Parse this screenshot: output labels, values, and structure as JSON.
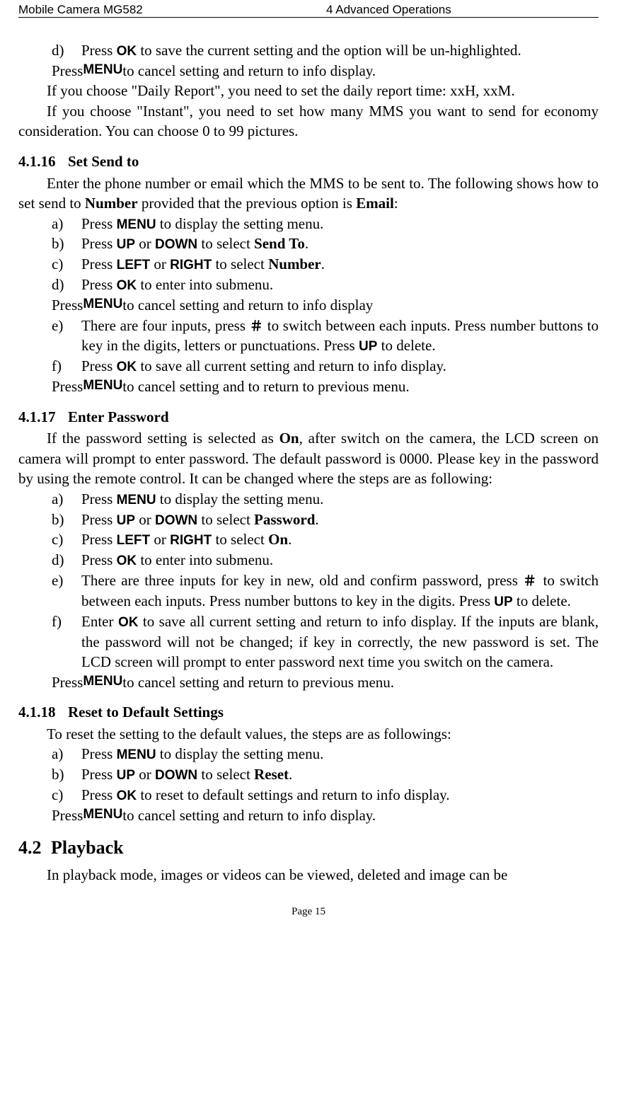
{
  "header": {
    "left": "Mobile Camera MG582",
    "mid": "4 Advanced Operations"
  },
  "footer": "Page 15",
  "buttons": {
    "OK": "OK",
    "MENU": "MENU",
    "UP": "UP",
    "DOWN": "DOWN",
    "LEFT": "LEFT",
    "RIGHT": "RIGHT",
    "HASH": "＃"
  },
  "s0": {
    "d_1": "Press ",
    "d_2": " to save the current setting and the option will be un-highlighted.",
    "d_sub_1": "Press ",
    "d_sub_2": " to cancel setting and return to info display.",
    "p1": "If you choose \"Daily Report\", you need to set the daily report time: xxH, xxM.",
    "p2": "If you choose \"Instant\", you need to set how many MMS you want to send for economy consideration. You can choose 0 to 99 pictures."
  },
  "s16": {
    "num": "4.1.16",
    "title": "Set Send to",
    "intro_1": "Enter the phone number or email which the MMS to be sent to. The following shows how to set send to ",
    "intro_b1": "Number",
    "intro_2": " provided that the previous option is ",
    "intro_b2": "Email",
    "intro_3": ":",
    "a_1": "Press ",
    "a_2": " to display the setting menu.",
    "b_1": "Press ",
    "b_2": " or ",
    "b_3": " to select ",
    "b_b": "Send To",
    "b_4": ".",
    "c_1": "Press ",
    "c_2": " or ",
    "c_3": " to select ",
    "c_b": "Number",
    "c_4": ".",
    "d_1": "Press ",
    "d_2": " to enter into submenu.",
    "d_sub_1": "Press ",
    "d_sub_2": " to cancel setting and return to info display",
    "e_1": "There are four inputs, press ",
    "e_2": " to switch between each inputs. Press number buttons to key in the digits, letters or punctuations. Press ",
    "e_3": " to delete.",
    "f_1": "Press ",
    "f_2": " to save all current setting and return to info display.",
    "f_sub_1": "Press ",
    "f_sub_2": " to cancel setting and to return to previous menu."
  },
  "s17": {
    "num": "4.1.17",
    "title": "Enter Password",
    "intro_1": "If the password setting is selected as ",
    "intro_b1": "On",
    "intro_2": ", after switch on the camera, the LCD screen on camera will prompt to enter password. The default password is 0000. Please key in the password by using the remote control. It can be changed where the steps are as following:",
    "a_1": "Press ",
    "a_2": " to display the setting menu.",
    "b_1": "Press ",
    "b_2": " or ",
    "b_3": " to select ",
    "b_b": "Password",
    "b_4": ".",
    "c_1": "Press ",
    "c_2": " or ",
    "c_3": " to select ",
    "c_b": "On",
    "c_4": ".",
    "d_1": "Press ",
    "d_2": " to enter into submenu.",
    "e_1": "There are three inputs for key in new, old and confirm password, press ",
    "e_2": " to switch between each inputs. Press number buttons to key in the digits. Press ",
    "e_3": " to delete.",
    "f_1": "Enter ",
    "f_2": " to save all current setting and return to info display. If the inputs are blank, the password will not be changed; if key in correctly, the new password is set. The LCD screen will prompt to enter password next time you switch on the camera.",
    "f_sub_1": "Press ",
    "f_sub_2": " to cancel setting and return to previous menu."
  },
  "s18": {
    "num": "4.1.18",
    "title": "Reset to Default Settings",
    "intro": "To reset the setting to the default values, the steps are as followings:",
    "a_1": "Press ",
    "a_2": " to display the setting menu.",
    "b_1": "Press ",
    "b_2": " or ",
    "b_3": " to select ",
    "b_b": "Reset",
    "b_4": ".",
    "c_1": "Press ",
    "c_2": " to reset to default settings and return to info display.",
    "c_sub_1": "Press ",
    "c_sub_2": " to cancel setting and return to info display."
  },
  "s42": {
    "num": "4.2",
    "title": "Playback",
    "intro": "In playback mode, images or videos can be viewed, deleted and image can be"
  },
  "markers": {
    "a": "a)",
    "b": "b)",
    "c": "c)",
    "d": "d)",
    "e": "e)",
    "f": "f)"
  }
}
